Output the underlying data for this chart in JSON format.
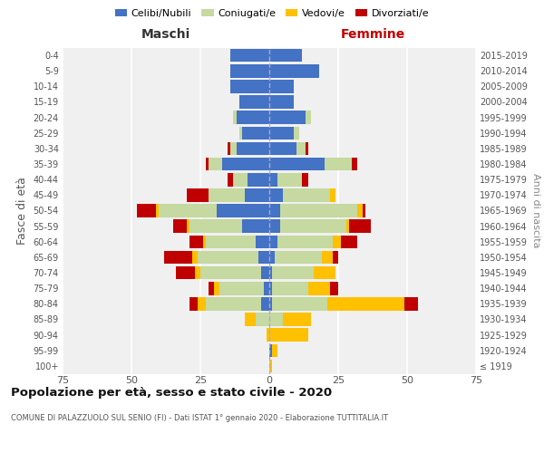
{
  "age_groups": [
    "100+",
    "95-99",
    "90-94",
    "85-89",
    "80-84",
    "75-79",
    "70-74",
    "65-69",
    "60-64",
    "55-59",
    "50-54",
    "45-49",
    "40-44",
    "35-39",
    "30-34",
    "25-29",
    "20-24",
    "15-19",
    "10-14",
    "5-9",
    "0-4"
  ],
  "birth_years": [
    "≤ 1919",
    "1920-1924",
    "1925-1929",
    "1930-1934",
    "1935-1939",
    "1940-1944",
    "1945-1949",
    "1950-1954",
    "1955-1959",
    "1960-1964",
    "1965-1969",
    "1970-1974",
    "1975-1979",
    "1980-1984",
    "1985-1989",
    "1990-1994",
    "1995-1999",
    "2000-2004",
    "2005-2009",
    "2010-2014",
    "2015-2019"
  ],
  "male": {
    "celibi": [
      0,
      0,
      0,
      0,
      3,
      2,
      3,
      4,
      5,
      10,
      19,
      9,
      8,
      17,
      12,
      10,
      12,
      11,
      14,
      14,
      14
    ],
    "coniugati": [
      0,
      0,
      0,
      5,
      20,
      16,
      22,
      22,
      18,
      19,
      21,
      13,
      5,
      5,
      2,
      1,
      1,
      0,
      0,
      0,
      0
    ],
    "vedovi": [
      0,
      0,
      1,
      4,
      3,
      2,
      2,
      2,
      1,
      1,
      1,
      0,
      0,
      0,
      0,
      0,
      0,
      0,
      0,
      0,
      0
    ],
    "divorziati": [
      0,
      0,
      0,
      0,
      3,
      2,
      7,
      10,
      5,
      5,
      7,
      8,
      2,
      1,
      1,
      0,
      0,
      0,
      0,
      0,
      0
    ]
  },
  "female": {
    "nubili": [
      0,
      1,
      0,
      0,
      1,
      1,
      1,
      2,
      3,
      4,
      4,
      5,
      3,
      20,
      10,
      9,
      13,
      9,
      9,
      18,
      12
    ],
    "coniugate": [
      0,
      0,
      0,
      5,
      20,
      13,
      15,
      17,
      20,
      24,
      28,
      17,
      9,
      10,
      3,
      2,
      2,
      0,
      0,
      0,
      0
    ],
    "vedove": [
      1,
      2,
      14,
      10,
      28,
      8,
      8,
      4,
      3,
      1,
      2,
      2,
      0,
      0,
      0,
      0,
      0,
      0,
      0,
      0,
      0
    ],
    "divorziate": [
      0,
      0,
      0,
      0,
      5,
      3,
      0,
      2,
      6,
      8,
      1,
      0,
      2,
      2,
      1,
      0,
      0,
      0,
      0,
      0,
      0
    ]
  },
  "colors": {
    "celibi": "#4472c4",
    "coniugati": "#c5d9a0",
    "vedovi": "#ffc000",
    "divorziati": "#c00000"
  },
  "xlim": 75,
  "title": "Popolazione per età, sesso e stato civile - 2020",
  "subtitle": "COMUNE DI PALAZZUOLO SUL SENIO (FI) - Dati ISTAT 1° gennaio 2020 - Elaborazione TUTTITALIA.IT",
  "ylabel_left": "Fasce di età",
  "ylabel_right": "Anni di nascita",
  "bg_color": "#f0f0f0",
  "bar_height": 0.85
}
